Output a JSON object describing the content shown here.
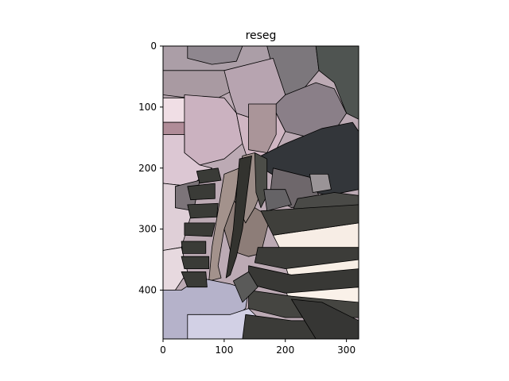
{
  "chart_data": {
    "type": "image",
    "title": "reseg",
    "xlabel": "",
    "ylabel": "",
    "xlim": [
      0,
      320
    ],
    "ylim": [
      480,
      0
    ],
    "xticks": [
      0,
      100,
      200,
      300
    ],
    "yticks": [
      0,
      100,
      200,
      300,
      400
    ],
    "grid": false,
    "regions": [
      {
        "fill": "#ab9ea7",
        "pts": [
          [
            0,
            0
          ],
          [
            180,
            0
          ],
          [
            180,
            20
          ],
          [
            150,
            45
          ],
          [
            100,
            40
          ],
          [
            60,
            50
          ],
          [
            0,
            40
          ]
        ]
      },
      {
        "fill": "#8f878f",
        "pts": [
          [
            40,
            0
          ],
          [
            130,
            0
          ],
          [
            120,
            25
          ],
          [
            80,
            30
          ],
          [
            40,
            20
          ]
        ]
      },
      {
        "fill": "#7c777c",
        "pts": [
          [
            170,
            0
          ],
          [
            250,
            0
          ],
          [
            255,
            40
          ],
          [
            230,
            70
          ],
          [
            200,
            80
          ],
          [
            180,
            40
          ]
        ]
      },
      {
        "fill": "#4f5451",
        "pts": [
          [
            250,
            0
          ],
          [
            320,
            0
          ],
          [
            320,
            120
          ],
          [
            300,
            110
          ],
          [
            280,
            60
          ],
          [
            255,
            40
          ]
        ]
      },
      {
        "fill": "#a99aa2",
        "pts": [
          [
            0,
            40
          ],
          [
            100,
            40
          ],
          [
            120,
            70
          ],
          [
            80,
            90
          ],
          [
            40,
            85
          ],
          [
            0,
            80
          ]
        ]
      },
      {
        "fill": "#b7a4b0",
        "pts": [
          [
            100,
            40
          ],
          [
            180,
            20
          ],
          [
            200,
            80
          ],
          [
            180,
            100
          ],
          [
            150,
            120
          ],
          [
            120,
            110
          ],
          [
            110,
            80
          ]
        ]
      },
      {
        "fill": "#8a7f88",
        "pts": [
          [
            200,
            80
          ],
          [
            250,
            60
          ],
          [
            280,
            70
          ],
          [
            300,
            110
          ],
          [
            280,
            140
          ],
          [
            240,
            150
          ],
          [
            200,
            140
          ],
          [
            180,
            100
          ]
        ]
      },
      {
        "fill": "#f0dee5",
        "pts": [
          [
            0,
            85
          ],
          [
            35,
            85
          ],
          [
            35,
            125
          ],
          [
            0,
            125
          ]
        ]
      },
      {
        "fill": "#b08c98",
        "pts": [
          [
            0,
            125
          ],
          [
            35,
            125
          ],
          [
            35,
            145
          ],
          [
            0,
            145
          ]
        ]
      },
      {
        "fill": "#cbb2c0",
        "pts": [
          [
            35,
            80
          ],
          [
            100,
            85
          ],
          [
            120,
            110
          ],
          [
            130,
            160
          ],
          [
            100,
            185
          ],
          [
            60,
            195
          ],
          [
            35,
            175
          ]
        ]
      },
      {
        "fill": "#d0b6c3",
        "pts": [
          [
            120,
            110
          ],
          [
            150,
            120
          ],
          [
            180,
            100
          ],
          [
            200,
            140
          ],
          [
            180,
            180
          ],
          [
            140,
            190
          ],
          [
            130,
            160
          ]
        ]
      },
      {
        "fill": "#aa9599",
        "pts": [
          [
            140,
            95
          ],
          [
            185,
            95
          ],
          [
            185,
            145
          ],
          [
            170,
            175
          ],
          [
            140,
            170
          ]
        ]
      },
      {
        "fill": "#dcc7d3",
        "pts": [
          [
            0,
            145
          ],
          [
            35,
            145
          ],
          [
            35,
            175
          ],
          [
            60,
            195
          ],
          [
            80,
            200
          ],
          [
            45,
            230
          ],
          [
            0,
            225
          ]
        ]
      },
      {
        "fill": "#dfcfd7",
        "pts": [
          [
            0,
            225
          ],
          [
            45,
            230
          ],
          [
            45,
            280
          ],
          [
            30,
            330
          ],
          [
            0,
            335
          ]
        ]
      },
      {
        "fill": "#e7d9df",
        "pts": [
          [
            0,
            335
          ],
          [
            30,
            330
          ],
          [
            40,
            370
          ],
          [
            20,
            400
          ],
          [
            0,
            400
          ]
        ]
      },
      {
        "fill": "#7c7479",
        "pts": [
          [
            20,
            230
          ],
          [
            60,
            220
          ],
          [
            50,
            270
          ],
          [
            20,
            265
          ]
        ]
      },
      {
        "fill": "#33363a",
        "pts": [
          [
            160,
            180
          ],
          [
            200,
            160
          ],
          [
            260,
            135
          ],
          [
            310,
            125
          ],
          [
            320,
            140
          ],
          [
            320,
            235
          ],
          [
            270,
            245
          ],
          [
            210,
            230
          ],
          [
            170,
            205
          ]
        ]
      },
      {
        "fill": "#6e676b",
        "pts": [
          [
            180,
            200
          ],
          [
            240,
            215
          ],
          [
            260,
            255
          ],
          [
            210,
            265
          ],
          [
            175,
            245
          ]
        ]
      },
      {
        "fill": "#9a9497",
        "pts": [
          [
            240,
            210
          ],
          [
            270,
            210
          ],
          [
            275,
            235
          ],
          [
            245,
            240
          ]
        ]
      },
      {
        "fill": "#4a4a47",
        "pts": [
          [
            220,
            250
          ],
          [
            280,
            240
          ],
          [
            320,
            245
          ],
          [
            320,
            285
          ],
          [
            250,
            280
          ],
          [
            210,
            275
          ]
        ]
      },
      {
        "fill": "#9a8b86",
        "pts": [
          [
            130,
            180
          ],
          [
            150,
            175
          ],
          [
            160,
            240
          ],
          [
            150,
            265
          ],
          [
            135,
            290
          ],
          [
            120,
            300
          ],
          [
            115,
            250
          ]
        ]
      },
      {
        "fill": "#8d7d78",
        "pts": [
          [
            115,
            250
          ],
          [
            135,
            290
          ],
          [
            150,
            265
          ],
          [
            175,
            280
          ],
          [
            160,
            340
          ],
          [
            140,
            345
          ],
          [
            110,
            335
          ],
          [
            100,
            300
          ]
        ]
      },
      {
        "fill": "#a3928c",
        "pts": [
          [
            100,
            210
          ],
          [
            125,
            200
          ],
          [
            118,
            250
          ],
          [
            100,
            300
          ],
          [
            90,
            360
          ],
          [
            95,
            380
          ],
          [
            75,
            385
          ],
          [
            80,
            330
          ]
        ]
      },
      {
        "fill": "#b5b2ca",
        "pts": [
          [
            0,
            400
          ],
          [
            30,
            400
          ],
          [
            60,
            380
          ],
          [
            110,
            390
          ],
          [
            140,
            400
          ],
          [
            135,
            430
          ],
          [
            110,
            450
          ],
          [
            60,
            440
          ],
          [
            40,
            480
          ],
          [
            0,
            480
          ]
        ]
      },
      {
        "fill": "#d2d0e5",
        "pts": [
          [
            40,
            440
          ],
          [
            110,
            440
          ],
          [
            140,
            430
          ],
          [
            160,
            450
          ],
          [
            150,
            480
          ],
          [
            40,
            480
          ]
        ]
      },
      {
        "fill": "#f7ede5",
        "pts": [
          [
            180,
            310
          ],
          [
            320,
            290
          ],
          [
            320,
            340
          ],
          [
            200,
            350
          ]
        ]
      },
      {
        "fill": "#f8efe6",
        "pts": [
          [
            200,
            360
          ],
          [
            320,
            345
          ],
          [
            320,
            385
          ],
          [
            210,
            390
          ]
        ]
      },
      {
        "fill": "#faf1e9",
        "pts": [
          [
            200,
            400
          ],
          [
            320,
            395
          ],
          [
            320,
            430
          ],
          [
            210,
            425
          ]
        ]
      },
      {
        "fill": "#3f3f3b",
        "pts": [
          [
            160,
            270
          ],
          [
            320,
            260
          ],
          [
            320,
            290
          ],
          [
            180,
            310
          ]
        ]
      },
      {
        "fill": "#3c3c39",
        "pts": [
          [
            155,
            330
          ],
          [
            320,
            330
          ],
          [
            320,
            350
          ],
          [
            200,
            365
          ],
          [
            150,
            355
          ]
        ]
      },
      {
        "fill": "#383835",
        "pts": [
          [
            140,
            360
          ],
          [
            210,
            375
          ],
          [
            320,
            365
          ],
          [
            320,
            395
          ],
          [
            200,
            405
          ],
          [
            140,
            390
          ]
        ]
      },
      {
        "fill": "#454541",
        "pts": [
          [
            140,
            400
          ],
          [
            210,
            410
          ],
          [
            320,
            420
          ],
          [
            320,
            445
          ],
          [
            200,
            445
          ],
          [
            140,
            430
          ]
        ]
      },
      {
        "fill": "#3b3b38",
        "pts": [
          [
            135,
            440
          ],
          [
            210,
            450
          ],
          [
            320,
            450
          ],
          [
            320,
            480
          ],
          [
            130,
            480
          ]
        ]
      },
      {
        "fill": "#363634",
        "pts": [
          [
            210,
            415
          ],
          [
            260,
            420
          ],
          [
            300,
            440
          ],
          [
            320,
            450
          ],
          [
            320,
            480
          ],
          [
            250,
            480
          ]
        ]
      },
      {
        "fill": "#3a3b37",
        "pts": [
          [
            55,
            205
          ],
          [
            90,
            200
          ],
          [
            95,
            220
          ],
          [
            60,
            225
          ]
        ]
      },
      {
        "fill": "#3a3b37",
        "pts": [
          [
            40,
            230
          ],
          [
            85,
            225
          ],
          [
            85,
            250
          ],
          [
            45,
            252
          ]
        ]
      },
      {
        "fill": "#3a3b37",
        "pts": [
          [
            40,
            260
          ],
          [
            90,
            258
          ],
          [
            88,
            280
          ],
          [
            45,
            282
          ]
        ]
      },
      {
        "fill": "#3a3b37",
        "pts": [
          [
            35,
            290
          ],
          [
            85,
            290
          ],
          [
            80,
            312
          ],
          [
            35,
            310
          ]
        ]
      },
      {
        "fill": "#3a3b37",
        "pts": [
          [
            30,
            320
          ],
          [
            70,
            320
          ],
          [
            70,
            340
          ],
          [
            32,
            340
          ]
        ]
      },
      {
        "fill": "#3a3b37",
        "pts": [
          [
            30,
            345
          ],
          [
            75,
            345
          ],
          [
            75,
            365
          ],
          [
            35,
            365
          ]
        ]
      },
      {
        "fill": "#3a3b37",
        "pts": [
          [
            30,
            370
          ],
          [
            70,
            370
          ],
          [
            72,
            395
          ],
          [
            40,
            395
          ]
        ]
      },
      {
        "fill": "#33332f",
        "pts": [
          [
            125,
            185
          ],
          [
            145,
            180
          ],
          [
            130,
            300
          ],
          [
            120,
            345
          ],
          [
            110,
            375
          ],
          [
            103,
            380
          ],
          [
            115,
            300
          ]
        ]
      },
      {
        "fill": "#4c4d48",
        "pts": [
          [
            150,
            175
          ],
          [
            170,
            185
          ],
          [
            170,
            245
          ],
          [
            160,
            265
          ],
          [
            152,
            240
          ]
        ]
      },
      {
        "fill": "#656366",
        "pts": [
          [
            165,
            235
          ],
          [
            200,
            235
          ],
          [
            210,
            260
          ],
          [
            170,
            270
          ]
        ]
      },
      {
        "fill": "#5a5a59",
        "pts": [
          [
            115,
            385
          ],
          [
            140,
            370
          ],
          [
            155,
            395
          ],
          [
            130,
            420
          ]
        ]
      }
    ]
  }
}
